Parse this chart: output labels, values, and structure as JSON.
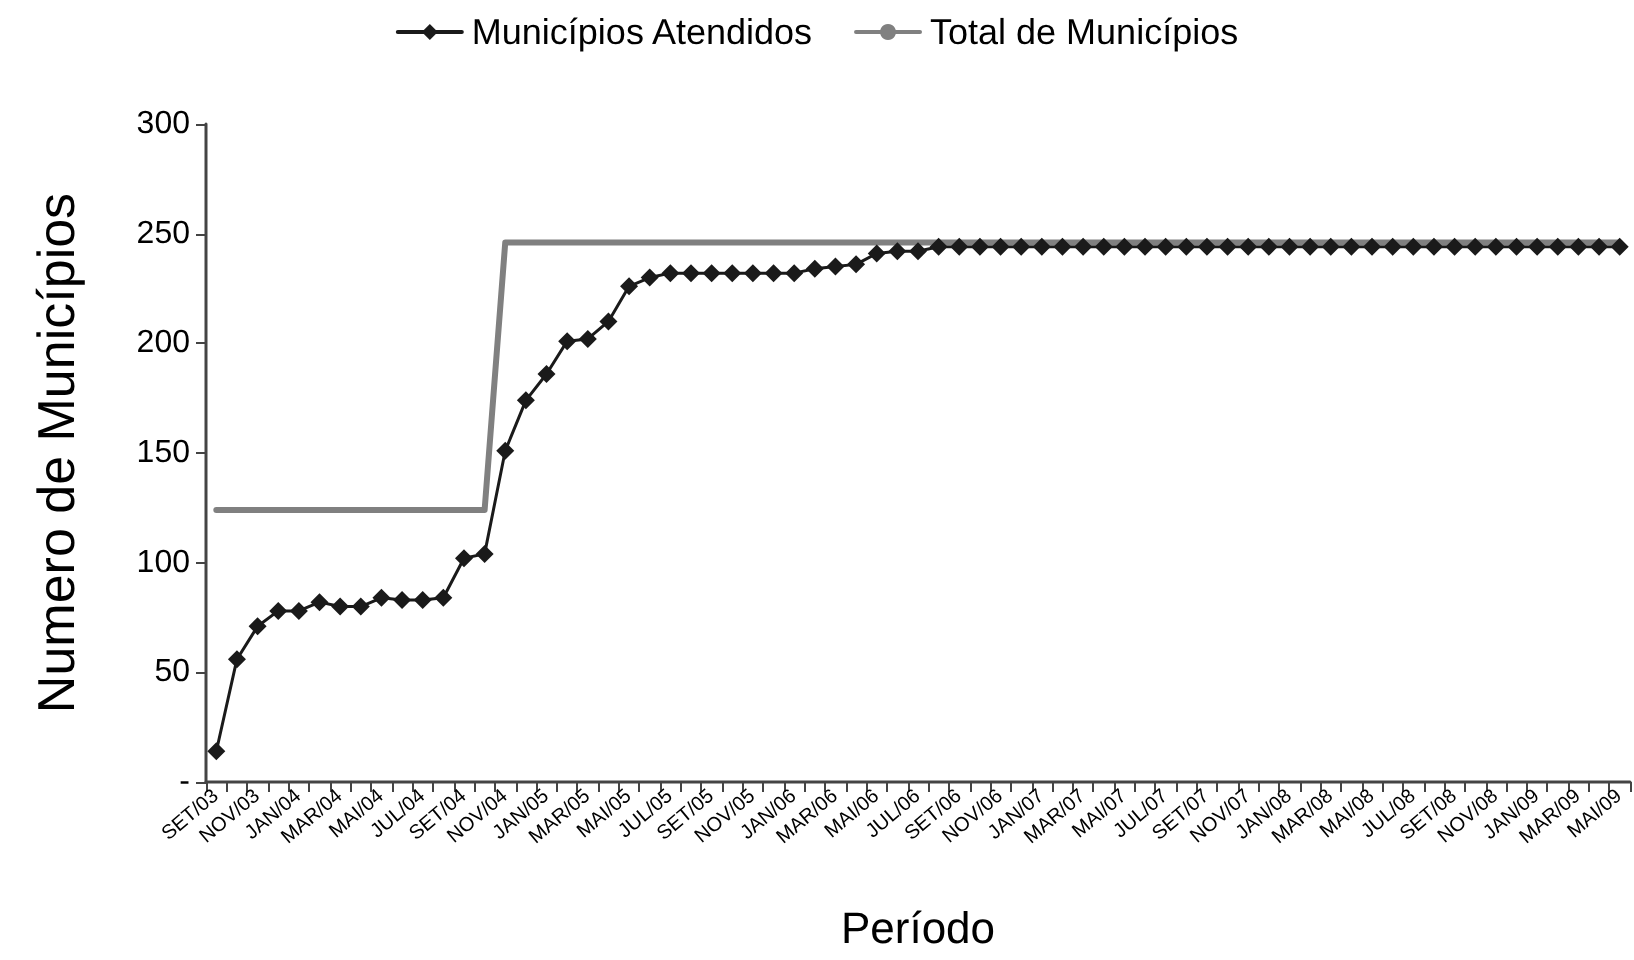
{
  "chart_data": {
    "type": "line",
    "xlabel": "Período",
    "ylabel": "Numero de Municípios",
    "categories": [
      "SET/03",
      null,
      "NOV/03",
      null,
      "JAN/04",
      null,
      "MAR/04",
      null,
      "MAI/04",
      null,
      "JUL/04",
      null,
      "SET/04",
      null,
      "NOV/04",
      null,
      "JAN/05",
      null,
      "MAR/05",
      null,
      "MAI/05",
      null,
      "JUL/05",
      null,
      "SET/05",
      null,
      "NOV/05",
      null,
      "JAN/06",
      null,
      "MAR/06",
      null,
      "MAI/06",
      null,
      "JUL/06",
      null,
      "SET/06",
      null,
      "NOV/06",
      null,
      "JAN/07",
      null,
      "MAR/07",
      null,
      "MAI/07",
      null,
      "JUL/07",
      null,
      "SET/07",
      null,
      "NOV/07",
      null,
      "JAN/08",
      null,
      "MAR/08",
      null,
      "MAI/08",
      null,
      "JUL/08",
      null,
      "SET/08",
      null,
      "NOV/08",
      null,
      "JAN/09",
      null,
      "MAR/09",
      null,
      "MAI/09"
    ],
    "series": [
      {
        "name": "Municípios Atendidos",
        "color": "#1a1a1a",
        "marker": "diamond",
        "values": [
          14,
          56,
          71,
          78,
          78,
          82,
          80,
          80,
          84,
          83,
          83,
          84,
          102,
          104,
          151,
          174,
          186,
          201,
          202,
          210,
          226,
          230,
          232,
          232,
          232,
          232,
          232,
          232,
          232,
          234,
          235,
          236,
          241,
          242,
          242,
          244,
          244,
          244,
          244,
          244,
          244,
          244,
          244,
          244,
          244,
          244,
          244,
          244,
          244,
          244,
          244,
          244,
          244,
          244,
          244,
          244,
          244,
          244,
          244,
          244,
          244,
          244,
          244,
          244,
          244,
          244,
          244,
          244,
          244
        ]
      },
      {
        "name": "Total de Municípios",
        "color": "#808080",
        "marker": "none",
        "values": [
          124,
          124,
          124,
          124,
          124,
          124,
          124,
          124,
          124,
          124,
          124,
          124,
          124,
          124,
          246,
          246,
          246,
          246,
          246,
          246,
          246,
          246,
          246,
          246,
          246,
          246,
          246,
          246,
          246,
          246,
          246,
          246,
          246,
          246,
          246,
          246,
          246,
          246,
          246,
          246,
          246,
          246,
          246,
          246,
          246,
          246,
          246,
          246,
          246,
          246,
          246,
          246,
          246,
          246,
          246,
          246,
          246,
          246,
          246,
          246,
          246,
          246,
          246,
          246,
          246,
          246,
          246,
          246,
          246
        ]
      }
    ],
    "ylim": [
      0,
      300
    ],
    "yticks": [
      {
        "value": 0,
        "label": "-"
      },
      50,
      100,
      150,
      200,
      250,
      300
    ],
    "grid": false,
    "legend": "top",
    "line_style": "solid"
  }
}
